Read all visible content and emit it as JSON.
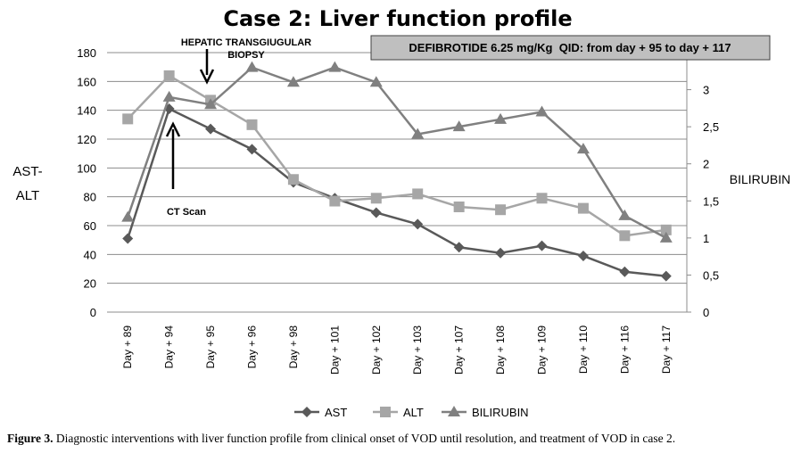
{
  "chart_data": {
    "type": "line",
    "title": "Case 2: Liver function profile",
    "categories": [
      "Day + 89",
      "Day + 94",
      "Day + 95",
      "Day + 96",
      "Day + 98",
      "Day + 101",
      "Day + 102",
      "Day + 103",
      "Day + 107",
      "Day + 108",
      "Day + 109",
      "Day + 110",
      "Day + 116",
      "Day + 117"
    ],
    "ylabel_left": [
      "AST-",
      "ALT"
    ],
    "ylabel_right": "BILIRUBIN",
    "ylim_left": [
      0,
      180
    ],
    "ylim_right": [
      0,
      3.5
    ],
    "yticks_left": [
      "0",
      "20",
      "40",
      "60",
      "80",
      "100",
      "120",
      "140",
      "160",
      "180"
    ],
    "yticks_right": [
      "0",
      "0,5",
      "1",
      "1,5",
      "2",
      "2,5",
      "3"
    ],
    "grid": true,
    "legend_position": "bottom",
    "series": [
      {
        "name": "AST",
        "axis": "left",
        "color": "#595959",
        "marker": "diamond",
        "values": [
          51,
          141,
          127,
          113,
          90,
          79,
          69,
          61,
          45,
          41,
          46,
          39,
          28,
          25
        ]
      },
      {
        "name": "ALT",
        "axis": "left",
        "color": "#a6a6a6",
        "marker": "square",
        "values": [
          134,
          164,
          147,
          130,
          92,
          77,
          79,
          82,
          73,
          71,
          79,
          72,
          53,
          57
        ]
      },
      {
        "name": "BILIRUBIN",
        "axis": "right",
        "color": "#808080",
        "marker": "triangle",
        "values": [
          1.28,
          2.9,
          2.8,
          3.3,
          3.1,
          3.3,
          3.1,
          2.4,
          2.5,
          2.6,
          2.7,
          2.2,
          1.3,
          1.0
        ]
      }
    ],
    "annotations": {
      "biopsy": {
        "lines": [
          "HEPATIC TRANSGIUGULAR",
          "BIOPSY"
        ],
        "category": "Day + 95"
      },
      "ct": {
        "text": "CT Scan",
        "category": "Day + 94"
      },
      "box": "DEFIBROTIDE 6.25 mg/Kg  QID: from day + 95 to day + 117"
    }
  },
  "caption": {
    "bold": "Figure 3.",
    "text": " Diagnostic interventions with liver function profile from clinical  onset of VOD until resolution, and treatment of VOD in case 2."
  }
}
